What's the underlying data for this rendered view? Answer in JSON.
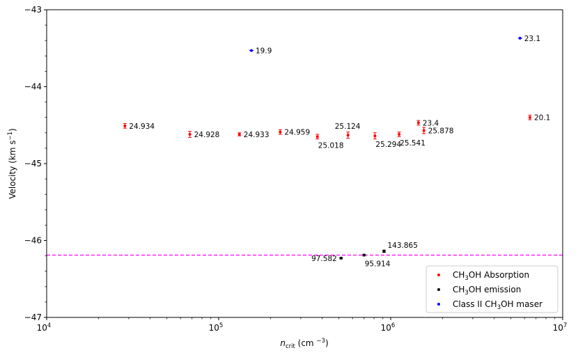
{
  "chart_data": {
    "type": "scatter",
    "title": "",
    "xlabel": {
      "main": "n",
      "sub": "crit",
      "unit": " (cm ",
      "exp": "−3",
      "close": ")"
    },
    "ylabel": {
      "main": "Velocity (km s",
      "exp": "−1",
      "close": ")"
    },
    "x_scale": "log",
    "xlim": [
      10000,
      10000000
    ],
    "ylim": [
      -47,
      -43
    ],
    "x_ticks": [
      {
        "value": 10000,
        "base": "10",
        "exp": "4"
      },
      {
        "value": 100000,
        "base": "10",
        "exp": "5"
      },
      {
        "value": 1000000,
        "base": "10",
        "exp": "6"
      },
      {
        "value": 10000000,
        "base": "10",
        "exp": "7"
      }
    ],
    "y_ticks": [
      {
        "value": -43,
        "label": "−43"
      },
      {
        "value": -44,
        "label": "−44"
      },
      {
        "value": -45,
        "label": "−45"
      },
      {
        "value": -46,
        "label": "−46"
      },
      {
        "value": -47,
        "label": "−47"
      }
    ],
    "grid": false,
    "reference_line": {
      "y": -46.19,
      "color": "#ff00ff",
      "style": "dashed"
    },
    "legend": {
      "position": "bottom-right",
      "entries": [
        {
          "pre": "CH",
          "sub": "3",
          "post": "OH Absorption",
          "color": "#ff0000"
        },
        {
          "pre": "CH",
          "sub": "3",
          "post": "OH emission",
          "color": "#000000"
        },
        {
          "pre": "Class II CH",
          "sub": "3",
          "post": "OH maser",
          "color": "#0000ff"
        }
      ]
    },
    "series": [
      {
        "color": "#ff0000",
        "points": [
          {
            "x": 28500,
            "y": -44.51,
            "err": 0.03,
            "label": "24.934",
            "anchor": "right"
          },
          {
            "x": 68000,
            "y": -44.62,
            "err": 0.04,
            "label": "24.928",
            "anchor": "right"
          },
          {
            "x": 132000,
            "y": -44.62,
            "err": 0.02,
            "label": "24.933",
            "anchor": "right"
          },
          {
            "x": 228000,
            "y": -44.59,
            "err": 0.03,
            "label": "24.959",
            "anchor": "right"
          },
          {
            "x": 375000,
            "y": -44.65,
            "err": 0.03,
            "label": "25.018",
            "anchor": "below"
          },
          {
            "x": 565000,
            "y": -44.63,
            "err": 0.04,
            "label": "25.124",
            "anchor": "above"
          },
          {
            "x": 810000,
            "y": -44.64,
            "err": 0.04,
            "label": "25.294",
            "anchor": "below"
          },
          {
            "x": 1120000,
            "y": -44.62,
            "err": 0.03,
            "label": "25.541",
            "anchor": "below"
          },
          {
            "x": 1450000,
            "y": -44.47,
            "err": 0.03,
            "label": "23.4",
            "anchor": "right"
          },
          {
            "x": 1560000,
            "y": -44.57,
            "err": 0.04,
            "label": "25.878",
            "anchor": "right"
          },
          {
            "x": 6450000,
            "y": -44.4,
            "err": 0.03,
            "label": "20.1",
            "anchor": "right"
          }
        ]
      },
      {
        "color": "#000000",
        "points": [
          {
            "x": 515000,
            "y": -46.23,
            "err": 0.01,
            "label": "97.582",
            "anchor": "left"
          },
          {
            "x": 700000,
            "y": -46.19,
            "err": 0.01,
            "label": "95.914",
            "anchor": "below"
          },
          {
            "x": 915000,
            "y": -46.14,
            "err": 0.015,
            "label": "143.865",
            "anchor": "above-right"
          }
        ]
      },
      {
        "color": "#0000ff",
        "points": [
          {
            "x": 155000,
            "y": -43.53,
            "err": 0.0,
            "label": "19.9",
            "anchor": "right"
          },
          {
            "x": 5650000,
            "y": -43.37,
            "err": 0.0,
            "label": "23.1",
            "anchor": "right"
          }
        ]
      }
    ]
  }
}
